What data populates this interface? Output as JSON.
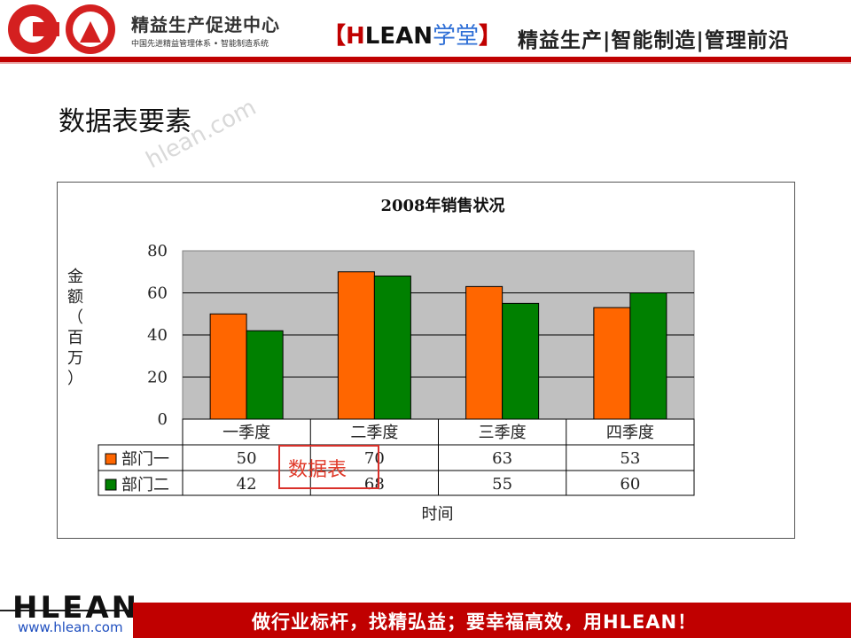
{
  "header": {
    "logo_title": "精益生产促进中心",
    "logo_subtitle": "中国先进精益管理体系 • 智能制造系统",
    "brand_open": "【",
    "brand_h": "H",
    "brand_lean": "LEAN",
    "brand_xt": "学堂",
    "brand_close": "】",
    "tagline": "精益生产|智能制造|管理前沿"
  },
  "page_title": "数据表要素",
  "watermark": "hlean.com",
  "annotation": "数据表",
  "colors": {
    "brand_red": "#c00000",
    "series1": "#ff6600",
    "series2": "#008000",
    "plot_bg": "#c0c0c0"
  },
  "chart_data": {
    "type": "bar",
    "title": "2008年销售状况",
    "categories": [
      "一季度",
      "二季度",
      "三季度",
      "四季度"
    ],
    "series": [
      {
        "name": "部门一",
        "values": [
          50,
          70,
          63,
          53
        ],
        "color": "#ff6600"
      },
      {
        "name": "部门二",
        "values": [
          42,
          68,
          55,
          60
        ],
        "color": "#008000"
      }
    ],
    "xlabel": "时间",
    "ylabel": "金额（百万）",
    "ylim": [
      0,
      80
    ],
    "yticks": [
      "0",
      "20",
      "40",
      "60",
      "80"
    ],
    "grid": true,
    "data_table": true
  },
  "footer": {
    "logo": "HLEAN",
    "url": "www.hlean.com",
    "slogan": "做行业标杆，找精弘益；要幸福高效，用HLEAN！"
  }
}
